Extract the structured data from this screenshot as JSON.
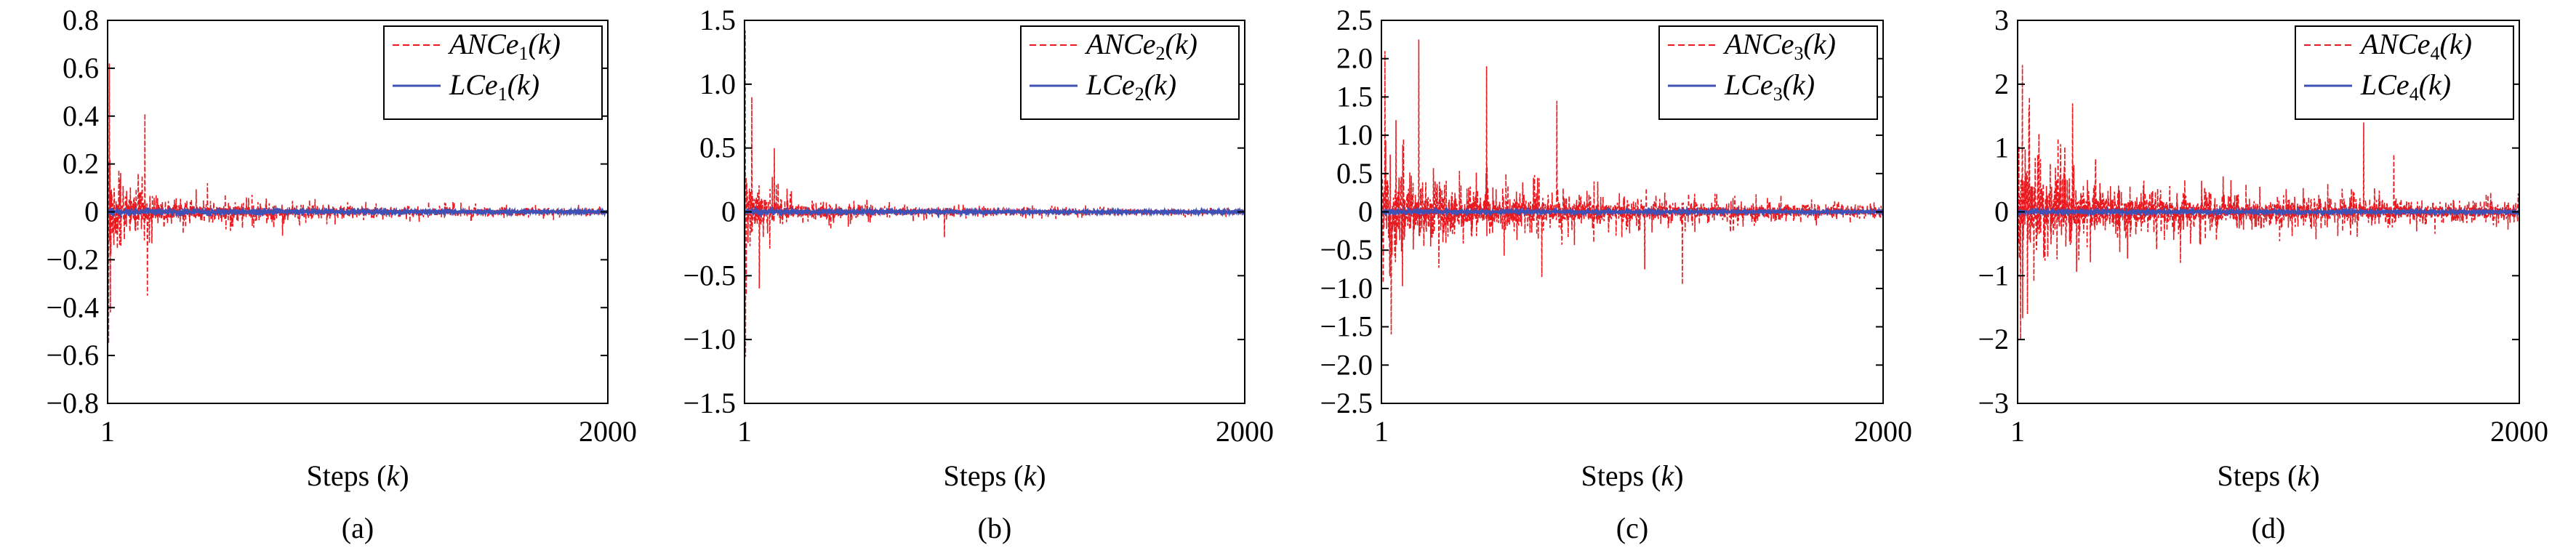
{
  "chart_data": [
    {
      "type": "line",
      "caption": "(a)",
      "xlabel_prefix": "Steps (",
      "xlabel_var": "k",
      "xlabel_suffix": ")",
      "xlim": [
        1,
        2000
      ],
      "xticks": [
        "1",
        "2000"
      ],
      "ylim": [
        -0.8,
        0.8
      ],
      "yticks": [
        "-0.8",
        "-0.6",
        "-0.4",
        "-0.2",
        "0",
        "0.2",
        "0.4",
        "0.6",
        "0.8"
      ],
      "legend_position": "top-right",
      "series": [
        {
          "name_base": "ANCe",
          "name_sub": "1",
          "name_arg": "(k)",
          "color": "#e8191f",
          "style": "dashed",
          "envelope": [
            [
              1,
              0.64
            ],
            [
              20,
              0.45
            ],
            [
              60,
              0.25
            ],
            [
              150,
              0.15
            ],
            [
              300,
              0.1
            ],
            [
              600,
              0.07
            ],
            [
              1000,
              0.05
            ],
            [
              2000,
              0.03
            ]
          ],
          "spikes": [
            [
              5,
              -0.55
            ],
            [
              8,
              0.62
            ],
            [
              12,
              -0.42
            ],
            [
              150,
              0.41
            ],
            [
              160,
              -0.35
            ],
            [
              400,
              0.12
            ],
            [
              700,
              -0.1
            ]
          ]
        },
        {
          "name_base": "LCe",
          "name_sub": "1",
          "name_arg": "(k)",
          "color": "#3f51b5",
          "style": "solid",
          "envelope": [
            [
              1,
              0.02
            ],
            [
              2000,
              0.01
            ]
          ],
          "spikes": []
        }
      ]
    },
    {
      "type": "line",
      "caption": "(b)",
      "xlabel_prefix": "Steps (",
      "xlabel_var": "k",
      "xlabel_suffix": ")",
      "xlim": [
        1,
        2000
      ],
      "xticks": [
        "1",
        "2000"
      ],
      "ylim": [
        -1.5,
        1.5
      ],
      "yticks": [
        "-1.5",
        "-1.0",
        "-0.5",
        "0",
        "0.5",
        "1.0",
        "1.5"
      ],
      "legend_position": "top-right",
      "series": [
        {
          "name_base": "ANCe",
          "name_sub": "2",
          "name_arg": "(k)",
          "color": "#e8191f",
          "style": "dashed",
          "envelope": [
            [
              1,
              1.4
            ],
            [
              20,
              0.8
            ],
            [
              60,
              0.45
            ],
            [
              150,
              0.2
            ],
            [
              300,
              0.15
            ],
            [
              600,
              0.08
            ],
            [
              1000,
              0.06
            ],
            [
              2000,
              0.04
            ]
          ],
          "spikes": [
            [
              4,
              1.42
            ],
            [
              8,
              -0.65
            ],
            [
              30,
              0.9
            ],
            [
              60,
              -0.6
            ],
            [
              120,
              0.5
            ],
            [
              800,
              -0.2
            ]
          ]
        },
        {
          "name_base": "LCe",
          "name_sub": "2",
          "name_arg": "(k)",
          "color": "#3f51b5",
          "style": "solid",
          "envelope": [
            [
              1,
              0.03
            ],
            [
              2000,
              0.015
            ]
          ],
          "spikes": []
        }
      ]
    },
    {
      "type": "line",
      "caption": "(c)",
      "xlabel_prefix": "Steps (",
      "xlabel_var": "k",
      "xlabel_suffix": ")",
      "xlim": [
        1,
        2000
      ],
      "xticks": [
        "1",
        "2000"
      ],
      "ylim": [
        -2.5,
        2.5
      ],
      "yticks": [
        "-2.5",
        "-2.0",
        "-1.5",
        "-1.0",
        "-0.5",
        "0",
        "0.5",
        "1.0",
        "1.5",
        "2.0",
        "2.5"
      ],
      "legend_position": "top-right",
      "series": [
        {
          "name_base": "ANCe",
          "name_sub": "3",
          "name_arg": "(k)",
          "color": "#e8191f",
          "style": "dashed",
          "envelope": [
            [
              1,
              2.0
            ],
            [
              50,
              1.3
            ],
            [
              150,
              0.9
            ],
            [
              300,
              0.7
            ],
            [
              600,
              0.5
            ],
            [
              1000,
              0.35
            ],
            [
              1500,
              0.25
            ],
            [
              2000,
              0.15
            ]
          ],
          "spikes": [
            [
              15,
              2.1
            ],
            [
              40,
              -1.6
            ],
            [
              150,
              2.25
            ],
            [
              420,
              1.9
            ],
            [
              640,
              -0.85
            ],
            [
              700,
              1.45
            ],
            [
              1050,
              -0.75
            ],
            [
              1200,
              -0.95
            ]
          ]
        },
        {
          "name_base": "LCe",
          "name_sub": "3",
          "name_arg": "(k)",
          "color": "#3f51b5",
          "style": "solid",
          "envelope": [
            [
              1,
              0.04
            ],
            [
              2000,
              0.02
            ]
          ],
          "spikes": []
        }
      ]
    },
    {
      "type": "line",
      "caption": "(d)",
      "xlabel_prefix": "Steps (",
      "xlabel_var": "k",
      "xlabel_suffix": ")",
      "xlim": [
        1,
        2000
      ],
      "xticks": [
        "1",
        "2000"
      ],
      "ylim": [
        -3,
        3
      ],
      "yticks": [
        "-3",
        "-2",
        "-1",
        "0",
        "1",
        "2",
        "3"
      ],
      "legend_position": "top-right",
      "series": [
        {
          "name_base": "ANCe",
          "name_sub": "4",
          "name_arg": "(k)",
          "color": "#e8191f",
          "style": "dashed",
          "envelope": [
            [
              1,
              2.3
            ],
            [
              80,
              1.6
            ],
            [
              200,
              1.1
            ],
            [
              400,
              0.8
            ],
            [
              700,
              0.6
            ],
            [
              1000,
              0.5
            ],
            [
              1400,
              0.4
            ],
            [
              2000,
              0.3
            ]
          ],
          "spikes": [
            [
              20,
              2.3
            ],
            [
              40,
              -1.6
            ],
            [
              220,
              1.7
            ],
            [
              650,
              -0.8
            ],
            [
              1380,
              1.4
            ],
            [
              1500,
              0.9
            ]
          ]
        },
        {
          "name_base": "LCe",
          "name_sub": "4",
          "name_arg": "(k)",
          "color": "#3f51b5",
          "style": "solid",
          "envelope": [
            [
              1,
              0.05
            ],
            [
              2000,
              0.03
            ]
          ],
          "spikes": []
        }
      ]
    }
  ]
}
